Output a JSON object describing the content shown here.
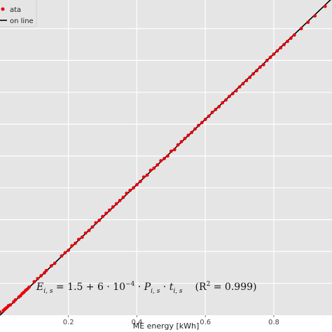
{
  "chart_data": {
    "type": "scatter",
    "xlabel": "ME energy [kWh]",
    "ylabel": "",
    "title": "",
    "xlim": [
      0.0,
      0.97
    ],
    "ylim": [
      0.0,
      0.99
    ],
    "xticks": [
      0.2,
      0.4,
      0.6,
      0.8
    ],
    "x_tick_labels": [
      "0.2",
      "0.4",
      "0.6",
      "0.8"
    ],
    "yticks": [
      0.1,
      0.2,
      0.3,
      0.4,
      0.5,
      0.6,
      0.7,
      0.8,
      0.9
    ],
    "grid": true,
    "legend": {
      "placement": "top-left",
      "entries": [
        {
          "label": "ata",
          "kind": "marker",
          "color": "#e8000b"
        },
        {
          "label": "on line",
          "kind": "line",
          "color": "#000000"
        }
      ]
    },
    "annotation": "E_{i,s} = 1.5 + 6·10⁻⁴·P_{i,s}·t_{i,s}    (R² = 0.999)",
    "annotation_parts": {
      "lhs": "E",
      "lhs_sub": "i, s",
      "eq": " = 1.5 + 6 · 10",
      "exp": "−4",
      "dot1": " · P",
      "p_sub": "i, s",
      "dot2": " · t",
      "t_sub": "i, s",
      "r2_open": "(R",
      "r2_sup": "2",
      "r2_close": " = 0.999)"
    },
    "series": [
      {
        "name": "Data",
        "kind": "scatter",
        "color": "#e8000b",
        "points": [
          [
            0.0,
            0.01
          ],
          [
            0.01,
            0.015
          ],
          [
            0.015,
            0.02
          ],
          [
            0.02,
            0.024
          ],
          [
            0.025,
            0.03
          ],
          [
            0.03,
            0.032
          ],
          [
            0.04,
            0.042
          ],
          [
            0.045,
            0.048
          ],
          [
            0.055,
            0.057
          ],
          [
            0.06,
            0.061
          ],
          [
            0.065,
            0.068
          ],
          [
            0.07,
            0.072
          ],
          [
            0.075,
            0.078
          ],
          [
            0.08,
            0.082
          ],
          [
            0.085,
            0.088
          ],
          [
            0.1,
            0.105
          ],
          [
            0.11,
            0.115
          ],
          [
            0.12,
            0.124
          ],
          [
            0.13,
            0.133
          ],
          [
            0.135,
            0.14
          ],
          [
            0.15,
            0.155
          ],
          [
            0.16,
            0.163
          ],
          [
            0.18,
            0.186
          ],
          [
            0.19,
            0.196
          ],
          [
            0.2,
            0.204
          ],
          [
            0.21,
            0.218
          ],
          [
            0.22,
            0.226
          ],
          [
            0.23,
            0.238
          ],
          [
            0.24,
            0.245
          ],
          [
            0.25,
            0.258
          ],
          [
            0.26,
            0.266
          ],
          [
            0.27,
            0.277
          ],
          [
            0.28,
            0.29
          ],
          [
            0.29,
            0.298
          ],
          [
            0.3,
            0.31
          ],
          [
            0.31,
            0.32
          ],
          [
            0.32,
            0.33
          ],
          [
            0.33,
            0.34
          ],
          [
            0.34,
            0.35
          ],
          [
            0.35,
            0.36
          ],
          [
            0.36,
            0.37
          ],
          [
            0.37,
            0.383
          ],
          [
            0.38,
            0.392
          ],
          [
            0.39,
            0.4
          ],
          [
            0.4,
            0.41
          ],
          [
            0.41,
            0.42
          ],
          [
            0.42,
            0.434
          ],
          [
            0.43,
            0.44
          ],
          [
            0.44,
            0.455
          ],
          [
            0.45,
            0.462
          ],
          [
            0.46,
            0.472
          ],
          [
            0.47,
            0.485
          ],
          [
            0.48,
            0.492
          ],
          [
            0.49,
            0.5
          ],
          [
            0.5,
            0.515
          ],
          [
            0.51,
            0.52
          ],
          [
            0.52,
            0.535
          ],
          [
            0.53,
            0.545
          ],
          [
            0.54,
            0.555
          ],
          [
            0.55,
            0.565
          ],
          [
            0.56,
            0.574
          ],
          [
            0.57,
            0.585
          ],
          [
            0.58,
            0.596
          ],
          [
            0.59,
            0.605
          ],
          [
            0.6,
            0.615
          ],
          [
            0.61,
            0.625
          ],
          [
            0.62,
            0.637
          ],
          [
            0.63,
            0.646
          ],
          [
            0.64,
            0.655
          ],
          [
            0.65,
            0.667
          ],
          [
            0.66,
            0.676
          ],
          [
            0.67,
            0.687
          ],
          [
            0.68,
            0.696
          ],
          [
            0.69,
            0.705
          ],
          [
            0.7,
            0.717
          ],
          [
            0.71,
            0.727
          ],
          [
            0.72,
            0.737
          ],
          [
            0.73,
            0.747
          ],
          [
            0.74,
            0.758
          ],
          [
            0.75,
            0.768
          ],
          [
            0.76,
            0.779
          ],
          [
            0.77,
            0.787
          ],
          [
            0.78,
            0.8
          ],
          [
            0.79,
            0.81
          ],
          [
            0.8,
            0.82
          ],
          [
            0.81,
            0.83
          ],
          [
            0.82,
            0.84
          ],
          [
            0.83,
            0.85
          ],
          [
            0.84,
            0.86
          ],
          [
            0.85,
            0.87
          ],
          [
            0.86,
            0.88
          ],
          [
            0.88,
            0.9
          ],
          [
            0.9,
            0.92
          ],
          [
            0.92,
            0.94
          ],
          [
            0.95,
            0.97
          ]
        ]
      },
      {
        "name": "Regression line",
        "kind": "line",
        "color": "#000000",
        "points": [
          [
            0.0,
            0.0
          ],
          [
            0.97,
            0.995
          ]
        ]
      }
    ]
  }
}
